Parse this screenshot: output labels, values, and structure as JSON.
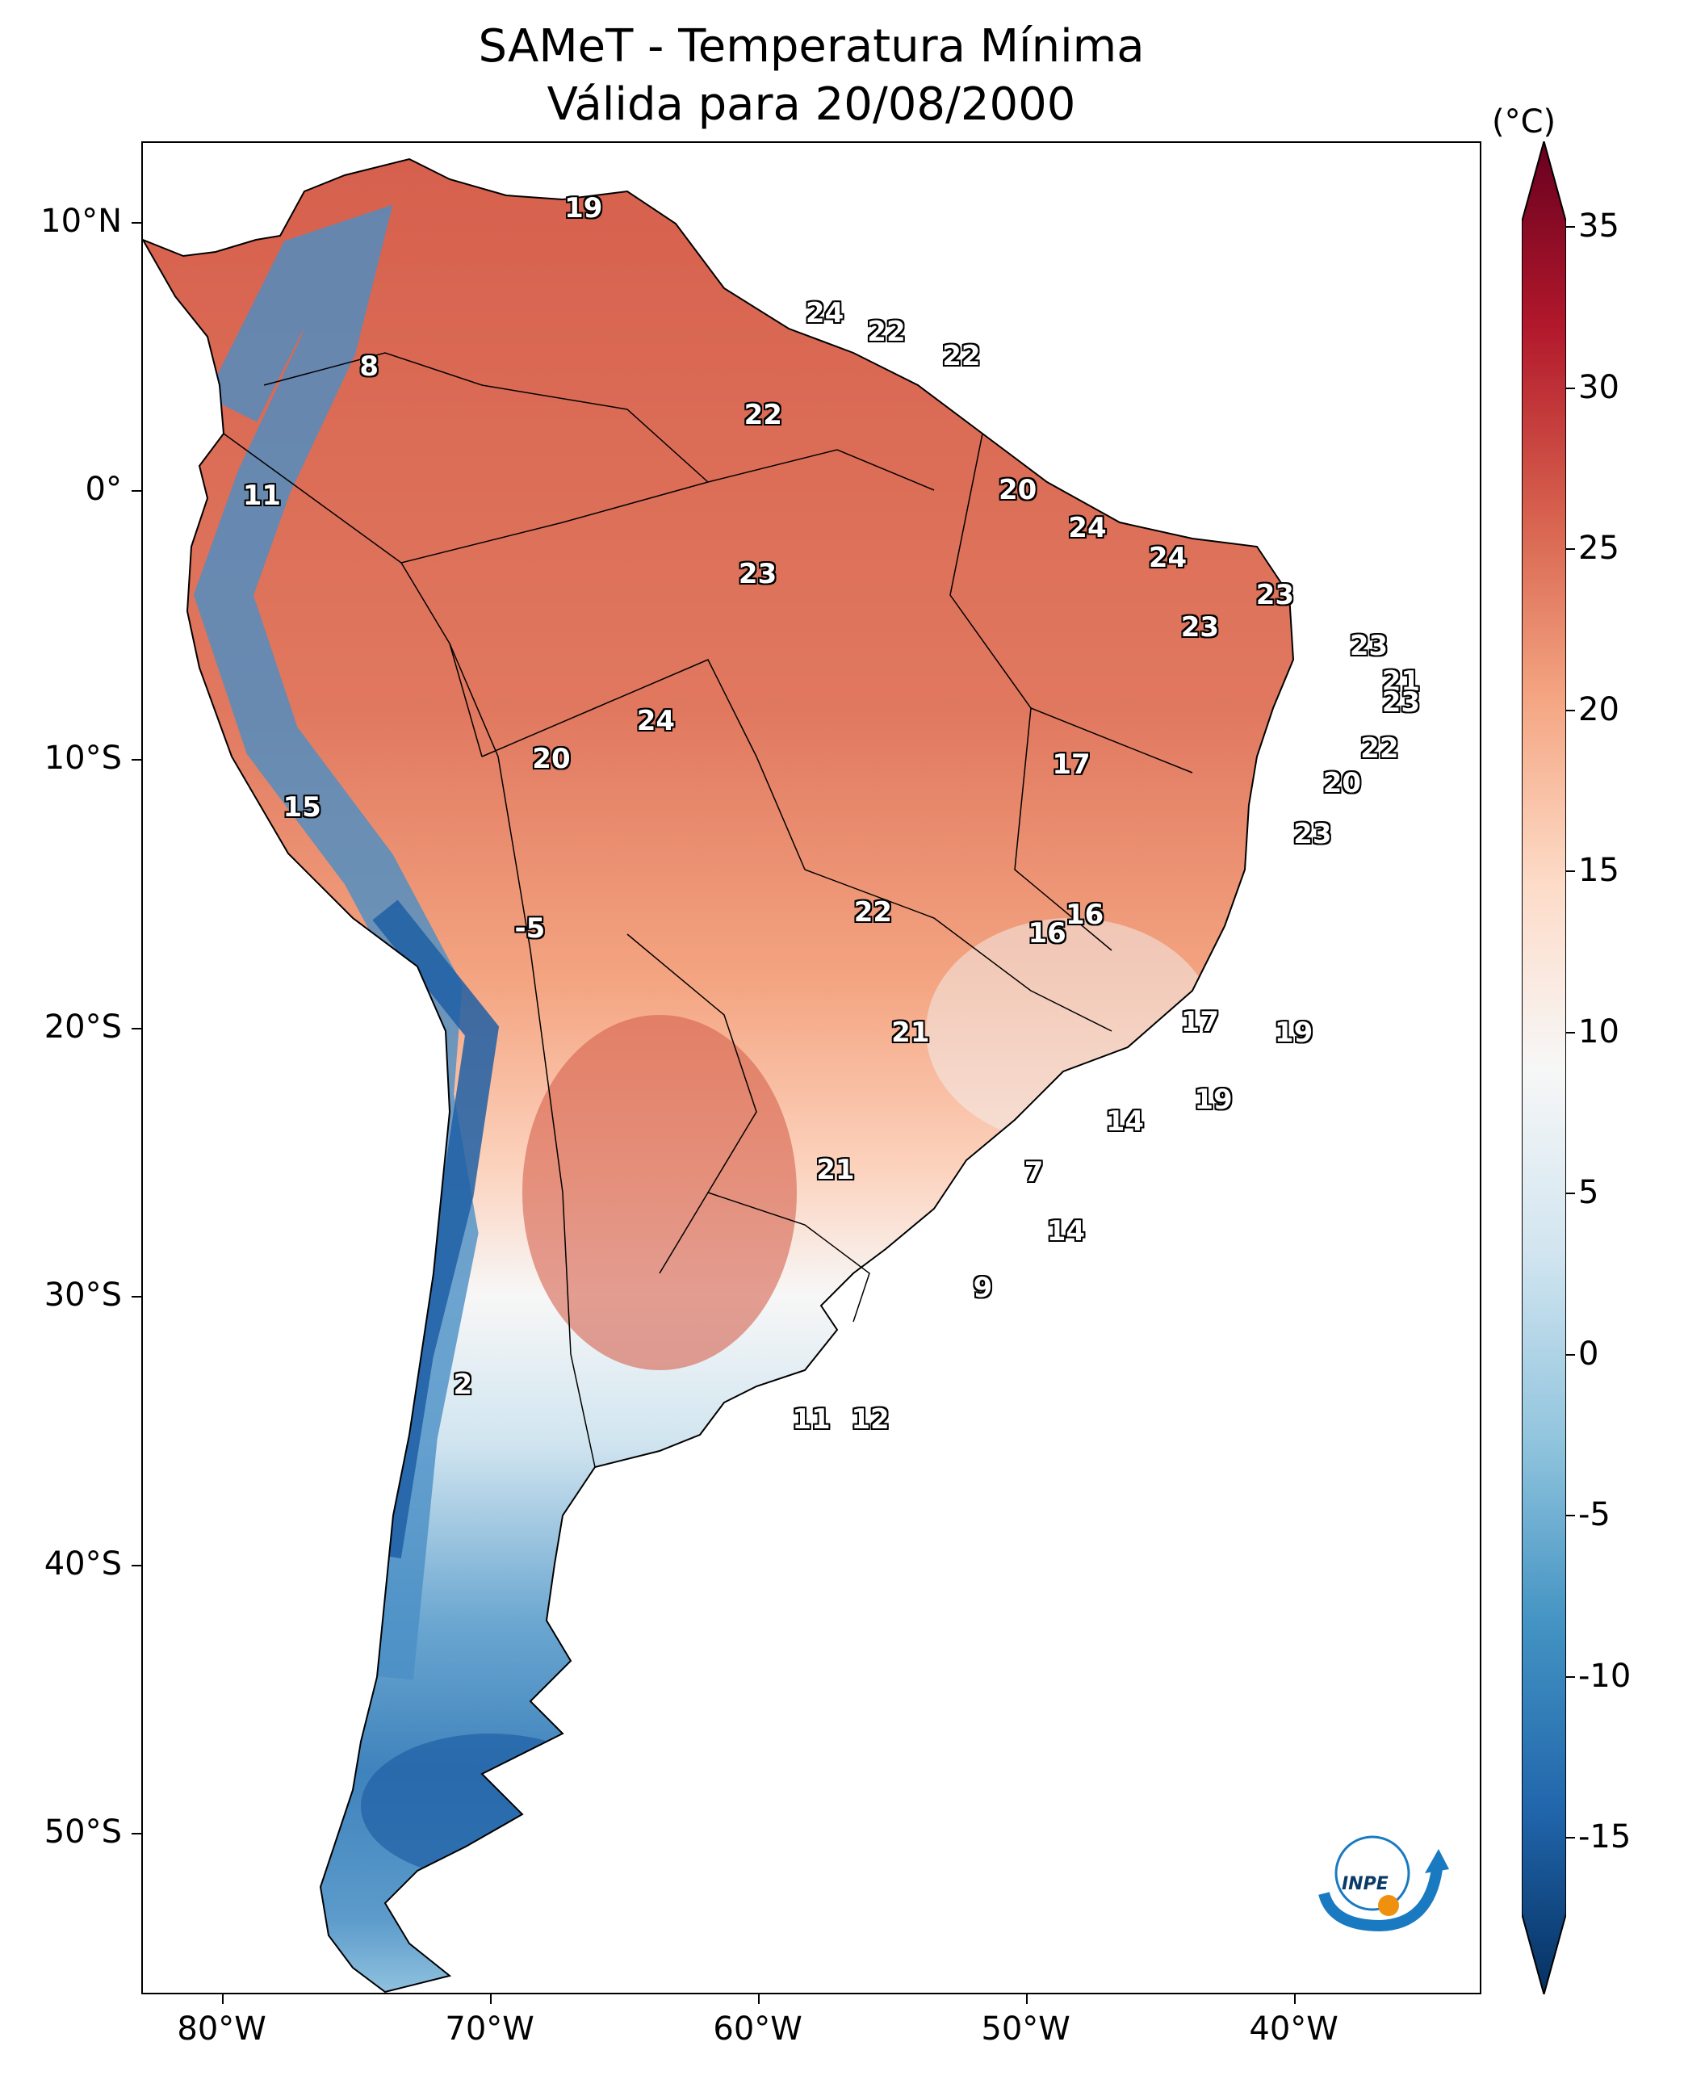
{
  "title": {
    "line1": "SAMeT - Temperatura Mínima",
    "line2": "Válida para 20/08/2000"
  },
  "axes": {
    "lat_ticks": [
      {
        "label": "10°N",
        "value": 10
      },
      {
        "label": "0°",
        "value": 0
      },
      {
        "label": "10°S",
        "value": -10
      },
      {
        "label": "20°S",
        "value": -20
      },
      {
        "label": "30°S",
        "value": -30
      },
      {
        "label": "40°S",
        "value": -40
      },
      {
        "label": "50°S",
        "value": -50
      }
    ],
    "lon_ticks": [
      {
        "label": "80°W",
        "value": -80
      },
      {
        "label": "70°W",
        "value": -70
      },
      {
        "label": "60°W",
        "value": -60
      },
      {
        "label": "50°W",
        "value": -50
      },
      {
        "label": "40°W",
        "value": -40
      }
    ],
    "lon_range": [
      -83,
      -33
    ],
    "lat_range": [
      -56,
      13
    ]
  },
  "colorbar": {
    "unit": "(°C)",
    "ticks": [
      "35",
      "30",
      "25",
      "20",
      "15",
      "10",
      "5",
      "0",
      "-5",
      "-10",
      "-15"
    ],
    "tick_values": [
      35,
      30,
      25,
      20,
      15,
      10,
      5,
      0,
      -5,
      -10,
      -15
    ],
    "range": [
      -15,
      35
    ],
    "colors": [
      "#053061",
      "#2166ac",
      "#4393c3",
      "#92c5de",
      "#d1e5f0",
      "#f7f7f7",
      "#fddbc7",
      "#f4a582",
      "#d6604d",
      "#b2182b",
      "#67001f"
    ]
  },
  "station_labels": [
    {
      "text": "19",
      "lon": -66.5,
      "lat": 10.5
    },
    {
      "text": "8",
      "lon": -74.5,
      "lat": 4.6
    },
    {
      "text": "24",
      "lon": -57.5,
      "lat": 6.6
    },
    {
      "text": "22",
      "lon": -55.2,
      "lat": 5.9
    },
    {
      "text": "22",
      "lon": -52.4,
      "lat": 5.0
    },
    {
      "text": "22",
      "lon": -59.8,
      "lat": 2.8
    },
    {
      "text": "11",
      "lon": -78.5,
      "lat": -0.2
    },
    {
      "text": "20",
      "lon": -50.3,
      "lat": 0.0
    },
    {
      "text": "24",
      "lon": -47.7,
      "lat": -1.4
    },
    {
      "text": "24",
      "lon": -44.7,
      "lat": -2.5
    },
    {
      "text": "23",
      "lon": -40.7,
      "lat": -3.9
    },
    {
      "text": "23",
      "lon": -60.0,
      "lat": -3.1
    },
    {
      "text": "23",
      "lon": -43.5,
      "lat": -5.1
    },
    {
      "text": "23",
      "lon": -37.2,
      "lat": -5.8
    },
    {
      "text": "21",
      "lon": -36.0,
      "lat": -7.1
    },
    {
      "text": "23",
      "lon": -36.0,
      "lat": -7.9
    },
    {
      "text": "24",
      "lon": -63.8,
      "lat": -8.6
    },
    {
      "text": "22",
      "lon": -36.8,
      "lat": -9.6
    },
    {
      "text": "20",
      "lon": -67.7,
      "lat": -10.0
    },
    {
      "text": "17",
      "lon": -48.3,
      "lat": -10.2
    },
    {
      "text": "20",
      "lon": -38.2,
      "lat": -10.9
    },
    {
      "text": "15",
      "lon": -77.0,
      "lat": -11.8
    },
    {
      "text": "23",
      "lon": -39.3,
      "lat": -12.8
    },
    {
      "text": "16",
      "lon": -47.8,
      "lat": -15.8
    },
    {
      "text": "16",
      "lon": -49.2,
      "lat": -16.5
    },
    {
      "text": "-5",
      "lon": -68.5,
      "lat": -16.3
    },
    {
      "text": "22",
      "lon": -55.7,
      "lat": -15.7
    },
    {
      "text": "17",
      "lon": -43.5,
      "lat": -19.8
    },
    {
      "text": "21",
      "lon": -54.3,
      "lat": -20.2
    },
    {
      "text": "19",
      "lon": -40.0,
      "lat": -20.2
    },
    {
      "text": "19",
      "lon": -43.0,
      "lat": -22.7
    },
    {
      "text": "14",
      "lon": -46.3,
      "lat": -23.5
    },
    {
      "text": "21",
      "lon": -57.1,
      "lat": -25.3
    },
    {
      "text": "7",
      "lon": -49.7,
      "lat": -25.4
    },
    {
      "text": "14",
      "lon": -48.5,
      "lat": -27.6
    },
    {
      "text": "9",
      "lon": -51.6,
      "lat": -29.7
    },
    {
      "text": "2",
      "lon": -71.0,
      "lat": -33.3
    },
    {
      "text": "11",
      "lon": -58.0,
      "lat": -34.6
    },
    {
      "text": "12",
      "lon": -55.8,
      "lat": -34.6
    }
  ],
  "logo": {
    "text": "INPE"
  }
}
